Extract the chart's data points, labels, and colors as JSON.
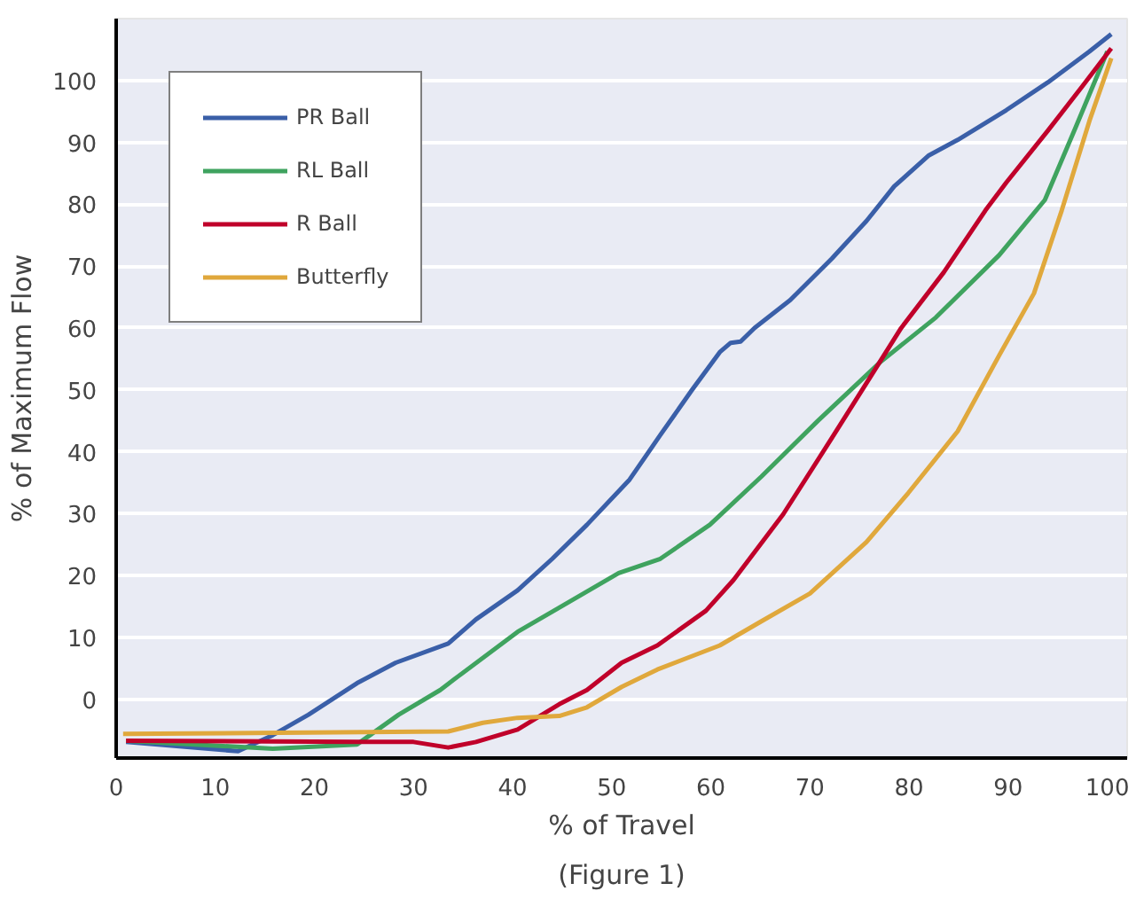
{
  "chart_data": {
    "type": "line",
    "xlabel": "% of Travel",
    "ylabel": "% of Maximum Flow",
    "annotations": [
      "(Figure 1)"
    ],
    "xlim": [
      0,
      102
    ],
    "ylim": [
      -9.5,
      110
    ],
    "xticks": [
      0,
      10,
      20,
      30,
      40,
      50,
      60,
      70,
      80,
      90,
      100
    ],
    "yticks": [
      0,
      10,
      20,
      30,
      40,
      50,
      60,
      70,
      80,
      90,
      100
    ],
    "grid": "y",
    "legend": "top left",
    "marker": "none",
    "line_style": "solid",
    "series": [
      {
        "name": "PR Ball",
        "color": "#3a5fa8",
        "x": [
          1,
          12.3,
          15.8,
          19.4,
          24.3,
          28.2,
          33.5,
          36.3,
          40.5,
          44,
          47.5,
          51.8,
          54.9,
          58.1,
          60.9,
          62,
          63,
          64.4,
          68,
          72.2,
          75.7,
          78.5,
          82,
          84.9,
          89.8,
          94,
          98.2,
          100.4
        ],
        "values": [
          -6.9,
          -8.4,
          -5.8,
          -2.5,
          2.6,
          5.9,
          9,
          12.9,
          17.6,
          22.7,
          28.2,
          35.5,
          42.7,
          50,
          56.1,
          57.6,
          57.8,
          60,
          64.5,
          71.2,
          77.3,
          82.9,
          87.9,
          90.4,
          95.2,
          99.7,
          104.7,
          107.5
        ]
      },
      {
        "name": "RL Ball",
        "color": "#3fa35f",
        "x": [
          1,
          15.8,
          24.3,
          28.5,
          32.7,
          34.5,
          40.5,
          44.7,
          50.7,
          54.9,
          59.9,
          65.1,
          70.8,
          77.1,
          82.7,
          89.1,
          93.7,
          96.8,
          100
        ],
        "values": [
          -6.7,
          -8,
          -7.3,
          -2.5,
          1.5,
          3.7,
          10.9,
          14.8,
          20.4,
          22.7,
          28.2,
          36,
          45,
          54.5,
          61.7,
          71.8,
          80.7,
          92.4,
          104.7
        ]
      },
      {
        "name": "R Ball",
        "color": "#c0002a",
        "x": [
          1,
          24.3,
          30,
          33.5,
          36.3,
          40.5,
          44.7,
          47.5,
          51,
          54.6,
          59.5,
          62.3,
          67.3,
          72.2,
          75.7,
          79.2,
          83.5,
          87.7,
          89.8,
          94,
          97.5,
          100.4
        ],
        "values": [
          -6.7,
          -6.9,
          -6.9,
          -7.8,
          -6.9,
          -4.9,
          -0.8,
          1.5,
          5.9,
          8.7,
          14.3,
          19.3,
          29.9,
          42.2,
          51.1,
          60,
          69,
          79,
          83.5,
          91.9,
          99.1,
          105.2
        ]
      },
      {
        "name": "Butterfly",
        "color": "#e0a83c",
        "x": [
          0.7,
          33.5,
          37,
          40.5,
          44.7,
          47.5,
          51,
          54.6,
          60.9,
          65.1,
          70,
          75.7,
          79.9,
          84.9,
          89.1,
          92.6,
          95.4,
          98.2,
          100.4
        ],
        "values": [
          -5.6,
          -5.2,
          -3.8,
          -3,
          -2.7,
          -1.3,
          2,
          4.8,
          8.7,
          12.6,
          17.1,
          25.4,
          33.3,
          43.3,
          55.6,
          65.6,
          79,
          93.5,
          103.6
        ]
      }
    ]
  }
}
